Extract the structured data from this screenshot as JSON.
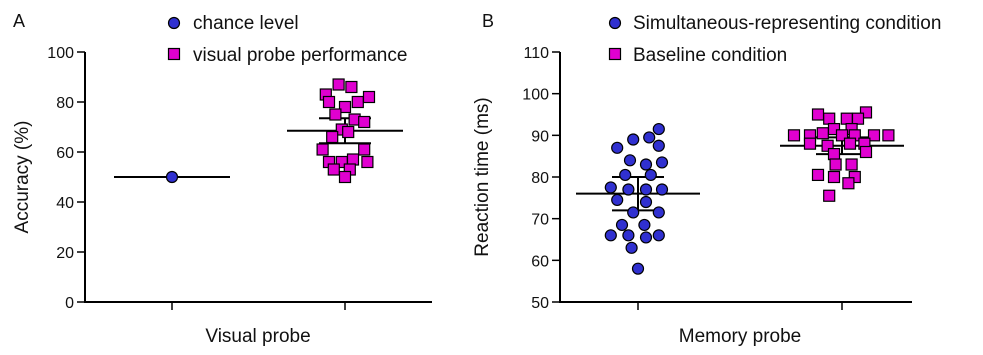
{
  "chart_data": [
    {
      "type": "scatter",
      "panel_label": "A",
      "ylabel": "Accuracy (%)",
      "xlabel": "Visual probe",
      "ylim": [
        0,
        100
      ],
      "yticks": [
        0,
        20,
        40,
        60,
        80,
        100
      ],
      "legend_position": "top",
      "series": [
        {
          "name": "chance level",
          "marker": "circle",
          "color": "#3030d0",
          "group": 0,
          "values": [
            {
              "x": 0,
              "y": 50
            }
          ],
          "mean": 50
        },
        {
          "name": "visual probe performance",
          "marker": "square",
          "color": "#e000d0",
          "group": 1,
          "values": [
            {
              "x": -0.12,
              "y": 83
            },
            {
              "x": -0.04,
              "y": 87
            },
            {
              "x": 0.04,
              "y": 86
            },
            {
              "x": -0.1,
              "y": 80
            },
            {
              "x": 0.0,
              "y": 78
            },
            {
              "x": 0.08,
              "y": 80
            },
            {
              "x": 0.15,
              "y": 82
            },
            {
              "x": -0.06,
              "y": 75
            },
            {
              "x": 0.06,
              "y": 73
            },
            {
              "x": -0.02,
              "y": 69
            },
            {
              "x": 0.12,
              "y": 72
            },
            {
              "x": -0.08,
              "y": 66
            },
            {
              "x": 0.02,
              "y": 68
            },
            {
              "x": -0.14,
              "y": 61
            },
            {
              "x": 0.12,
              "y": 61
            },
            {
              "x": -0.1,
              "y": 56
            },
            {
              "x": -0.02,
              "y": 56
            },
            {
              "x": 0.05,
              "y": 57
            },
            {
              "x": 0.14,
              "y": 56
            },
            {
              "x": -0.07,
              "y": 53
            },
            {
              "x": 0.03,
              "y": 53
            },
            {
              "x": 0.0,
              "y": 50
            }
          ],
          "mean": 68.5,
          "error": [
            63.5,
            73.5
          ]
        }
      ]
    },
    {
      "type": "scatter",
      "panel_label": "B",
      "ylabel": "Reaction time (ms)",
      "xlabel": "Memory probe",
      "ylim": [
        50,
        110
      ],
      "yticks": [
        50,
        60,
        70,
        80,
        90,
        100,
        110
      ],
      "legend_position": "top",
      "series": [
        {
          "name": "Simultaneous-representing condition",
          "marker": "circle",
          "color": "#3030d0",
          "group": 0,
          "values": [
            {
              "x": 0.13,
              "y": 91.5
            },
            {
              "x": -0.03,
              "y": 89
            },
            {
              "x": 0.07,
              "y": 89.5
            },
            {
              "x": -0.13,
              "y": 87
            },
            {
              "x": 0.13,
              "y": 87.5
            },
            {
              "x": -0.05,
              "y": 84
            },
            {
              "x": 0.05,
              "y": 83
            },
            {
              "x": 0.15,
              "y": 83.5
            },
            {
              "x": -0.08,
              "y": 80.5
            },
            {
              "x": 0.08,
              "y": 80.5
            },
            {
              "x": -0.17,
              "y": 77.5
            },
            {
              "x": -0.06,
              "y": 77
            },
            {
              "x": 0.05,
              "y": 77
            },
            {
              "x": 0.15,
              "y": 77
            },
            {
              "x": -0.13,
              "y": 74.5
            },
            {
              "x": 0.05,
              "y": 74
            },
            {
              "x": -0.03,
              "y": 71.5
            },
            {
              "x": 0.13,
              "y": 71.5
            },
            {
              "x": -0.1,
              "y": 68.5
            },
            {
              "x": 0.04,
              "y": 68.5
            },
            {
              "x": -0.17,
              "y": 66
            },
            {
              "x": -0.06,
              "y": 66
            },
            {
              "x": 0.05,
              "y": 65.5
            },
            {
              "x": 0.13,
              "y": 66
            },
            {
              "x": -0.04,
              "y": 63
            },
            {
              "x": 0.0,
              "y": 58
            }
          ],
          "mean": 76,
          "error": [
            72,
            80
          ]
        },
        {
          "name": "Baseline condition",
          "marker": "square",
          "color": "#e000d0",
          "group": 1,
          "values": [
            {
              "x": -0.15,
              "y": 95
            },
            {
              "x": 0.15,
              "y": 95.5
            },
            {
              "x": -0.08,
              "y": 94
            },
            {
              "x": 0.03,
              "y": 94
            },
            {
              "x": 0.1,
              "y": 94
            },
            {
              "x": -0.05,
              "y": 91.5
            },
            {
              "x": 0.06,
              "y": 91.5
            },
            {
              "x": -0.3,
              "y": 90
            },
            {
              "x": -0.2,
              "y": 90
            },
            {
              "x": -0.12,
              "y": 90.5
            },
            {
              "x": 0.0,
              "y": 90
            },
            {
              "x": 0.08,
              "y": 90
            },
            {
              "x": 0.2,
              "y": 90
            },
            {
              "x": 0.29,
              "y": 90
            },
            {
              "x": -0.2,
              "y": 88
            },
            {
              "x": -0.09,
              "y": 87.5
            },
            {
              "x": 0.05,
              "y": 88
            },
            {
              "x": 0.14,
              "y": 88
            },
            {
              "x": -0.05,
              "y": 85.5
            },
            {
              "x": 0.15,
              "y": 86
            },
            {
              "x": -0.04,
              "y": 83
            },
            {
              "x": 0.06,
              "y": 83
            },
            {
              "x": -0.15,
              "y": 80.5
            },
            {
              "x": -0.05,
              "y": 80
            },
            {
              "x": 0.08,
              "y": 80
            },
            {
              "x": 0.04,
              "y": 78.5
            },
            {
              "x": -0.08,
              "y": 75.5
            }
          ],
          "mean": 87.5,
          "error": [
            85.5,
            89.5
          ]
        }
      ]
    }
  ]
}
